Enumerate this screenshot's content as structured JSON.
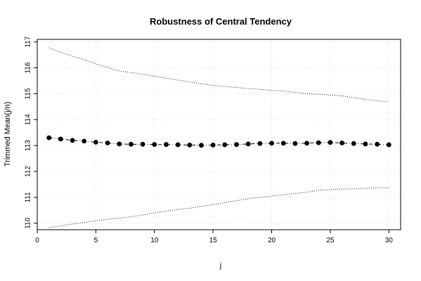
{
  "chart_data": {
    "type": "line",
    "title": "Robustness of Central Tendency",
    "xlabel": "j",
    "ylabel": "Trimmed Mean(j/n)",
    "xlim": [
      0,
      31
    ],
    "ylim": [
      109.75,
      117.1
    ],
    "x_ticks": [
      0,
      5,
      10,
      15,
      20,
      25,
      30
    ],
    "y_ticks": [
      110,
      111,
      112,
      113,
      114,
      115,
      116,
      117
    ],
    "grid": true,
    "legend": "none",
    "colors": {
      "series": "#000000",
      "grid": "#d9d9d9"
    },
    "x": [
      1,
      2,
      3,
      4,
      5,
      6,
      7,
      8,
      9,
      10,
      11,
      12,
      13,
      14,
      15,
      16,
      17,
      18,
      19,
      20,
      21,
      22,
      23,
      24,
      25,
      26,
      27,
      28,
      29,
      30
    ],
    "series": [
      {
        "role": "upper-bound",
        "style": "dotted",
        "values": [
          116.78,
          116.6,
          116.45,
          116.32,
          116.15,
          116.02,
          115.88,
          115.82,
          115.75,
          115.68,
          115.6,
          115.53,
          115.46,
          115.38,
          115.32,
          115.28,
          115.24,
          115.2,
          115.17,
          115.13,
          115.1,
          115.05,
          115.0,
          114.98,
          114.95,
          114.92,
          114.85,
          114.78,
          114.73,
          114.68
        ]
      },
      {
        "role": "trimmed-mean",
        "style": "dash-dot-points",
        "values": [
          113.3,
          113.25,
          113.2,
          113.17,
          113.13,
          113.1,
          113.06,
          113.05,
          113.05,
          113.04,
          113.04,
          113.03,
          113.02,
          113.01,
          113.02,
          113.03,
          113.04,
          113.06,
          113.08,
          113.09,
          113.09,
          113.08,
          113.09,
          113.11,
          113.12,
          113.1,
          113.08,
          113.06,
          113.05,
          113.03
        ]
      },
      {
        "role": "lower-bound",
        "style": "dotted",
        "values": [
          109.83,
          109.9,
          109.97,
          110.03,
          110.1,
          110.15,
          110.2,
          110.25,
          110.32,
          110.4,
          110.47,
          110.53,
          110.58,
          110.65,
          110.72,
          110.8,
          110.87,
          110.95,
          111.0,
          111.05,
          111.1,
          111.15,
          111.2,
          111.27,
          111.3,
          111.32,
          111.33,
          111.35,
          111.37,
          111.37
        ]
      }
    ]
  }
}
